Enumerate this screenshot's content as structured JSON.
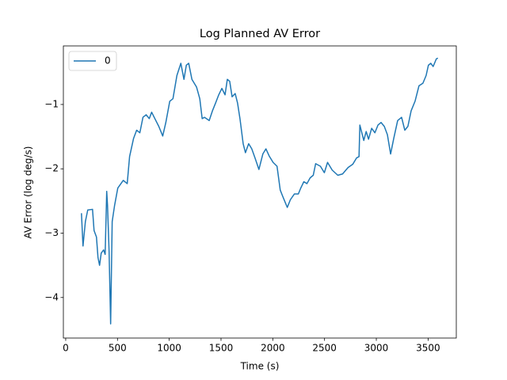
{
  "chart_data": {
    "type": "line",
    "title": "Log Planned AV Error",
    "x_label": "Time (s)",
    "y_label": "AV Error (log deg/s)",
    "legend": "upper left",
    "xlim": [
      -22.5,
      3772.5
    ],
    "ylim": [
      -4.63,
      -0.09
    ],
    "xticks": [
      0,
      500,
      1000,
      1500,
      2000,
      2500,
      3000,
      3500
    ],
    "yticks": [
      {
        "value": -4,
        "label": "−4"
      },
      {
        "value": -3,
        "label": "−3"
      },
      {
        "value": -2,
        "label": "−2"
      },
      {
        "value": -1,
        "label": "−1"
      }
    ],
    "x": [
      152,
      167,
      190,
      213,
      259,
      274,
      297,
      312,
      327,
      343,
      366,
      381,
      396,
      404,
      419,
      434,
      449,
      472,
      503,
      556,
      594,
      617,
      655,
      685,
      716,
      746,
      777,
      807,
      830,
      861,
      899,
      937,
      967,
      1005,
      1036,
      1074,
      1112,
      1142,
      1165,
      1188,
      1219,
      1264,
      1295,
      1318,
      1341,
      1386,
      1417,
      1447,
      1478,
      1508,
      1539,
      1561,
      1584,
      1607,
      1637,
      1660,
      1683,
      1714,
      1736,
      1767,
      1797,
      1828,
      1866,
      1904,
      1934,
      1965,
      2003,
      2041,
      2072,
      2094,
      2117,
      2140,
      2170,
      2209,
      2247,
      2270,
      2300,
      2330,
      2361,
      2391,
      2414,
      2460,
      2498,
      2529,
      2574,
      2628,
      2674,
      2727,
      2772,
      2810,
      2833,
      2841,
      2879,
      2902,
      2925,
      2955,
      2986,
      3016,
      3046,
      3077,
      3107,
      3138,
      3168,
      3206,
      3244,
      3275,
      3305,
      3336,
      3374,
      3412,
      3450,
      3481,
      3503,
      3526,
      3549,
      3580,
      3595
    ],
    "series": [
      {
        "name": "0",
        "color": "#1f77b4",
        "values": [
          -2.69,
          -3.2,
          -2.82,
          -2.64,
          -2.63,
          -2.96,
          -3.06,
          -3.38,
          -3.5,
          -3.31,
          -3.26,
          -3.33,
          -2.35,
          -2.57,
          -3.28,
          -4.41,
          -2.82,
          -2.57,
          -2.3,
          -2.18,
          -2.23,
          -1.81,
          -1.53,
          -1.4,
          -1.44,
          -1.2,
          -1.16,
          -1.22,
          -1.12,
          -1.22,
          -1.34,
          -1.49,
          -1.28,
          -0.95,
          -0.91,
          -0.55,
          -0.36,
          -0.61,
          -0.39,
          -0.36,
          -0.61,
          -0.73,
          -0.91,
          -1.22,
          -1.2,
          -1.25,
          -1.1,
          -0.98,
          -0.85,
          -0.75,
          -0.85,
          -0.61,
          -0.64,
          -0.88,
          -0.83,
          -0.98,
          -1.22,
          -1.61,
          -1.75,
          -1.61,
          -1.69,
          -1.83,
          -2.01,
          -1.77,
          -1.69,
          -1.8,
          -1.9,
          -1.96,
          -2.33,
          -2.42,
          -2.51,
          -2.6,
          -2.48,
          -2.39,
          -2.39,
          -2.3,
          -2.2,
          -2.23,
          -2.14,
          -2.1,
          -1.92,
          -1.96,
          -2.06,
          -1.9,
          -2.02,
          -2.1,
          -2.08,
          -1.98,
          -1.93,
          -1.83,
          -1.81,
          -1.32,
          -1.56,
          -1.42,
          -1.54,
          -1.37,
          -1.44,
          -1.32,
          -1.28,
          -1.34,
          -1.47,
          -1.77,
          -1.53,
          -1.25,
          -1.2,
          -1.4,
          -1.34,
          -1.1,
          -0.95,
          -0.71,
          -0.67,
          -0.55,
          -0.39,
          -0.36,
          -0.41,
          -0.29,
          -0.28
        ]
      }
    ]
  }
}
